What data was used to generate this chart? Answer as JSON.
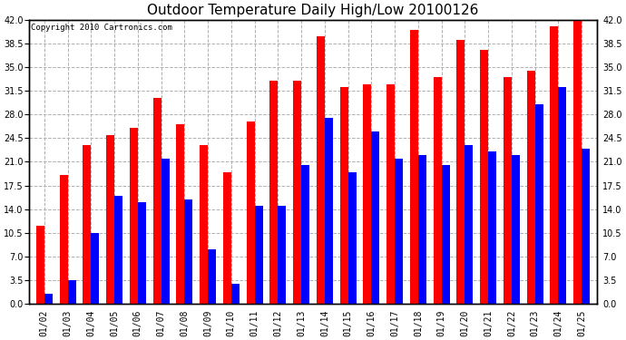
{
  "title": "Outdoor Temperature Daily High/Low 20100126",
  "copyright": "Copyright 2010 Cartronics.com",
  "dates": [
    "01/02",
    "01/03",
    "01/04",
    "01/05",
    "01/06",
    "01/07",
    "01/08",
    "01/09",
    "01/10",
    "01/11",
    "01/12",
    "01/13",
    "01/14",
    "01/15",
    "01/16",
    "01/17",
    "01/18",
    "01/19",
    "01/20",
    "01/21",
    "01/22",
    "01/23",
    "01/24",
    "01/25"
  ],
  "highs": [
    11.5,
    19.0,
    23.5,
    25.0,
    26.0,
    30.5,
    26.5,
    23.5,
    19.5,
    27.0,
    33.0,
    33.0,
    39.5,
    32.0,
    32.5,
    32.5,
    40.5,
    33.5,
    39.0,
    37.5,
    33.5,
    34.5,
    41.0,
    43.0
  ],
  "lows": [
    1.5,
    3.5,
    10.5,
    16.0,
    15.0,
    21.5,
    15.5,
    8.0,
    3.0,
    14.5,
    14.5,
    20.5,
    27.5,
    19.5,
    25.5,
    21.5,
    22.0,
    20.5,
    23.5,
    22.5,
    22.0,
    29.5,
    32.0,
    23.0
  ],
  "high_color": "#ff0000",
  "low_color": "#0000ff",
  "bg_color": "#ffffff",
  "plot_bg_color": "#ffffff",
  "grid_color": "#b0b0b0",
  "ylim": [
    0,
    42.0
  ],
  "yticks": [
    0.0,
    3.5,
    7.0,
    10.5,
    14.0,
    17.5,
    21.0,
    24.5,
    28.0,
    31.5,
    35.0,
    38.5,
    42.0
  ],
  "title_fontsize": 11,
  "copyright_fontsize": 6.5,
  "tick_fontsize": 7,
  "bar_width": 0.35
}
